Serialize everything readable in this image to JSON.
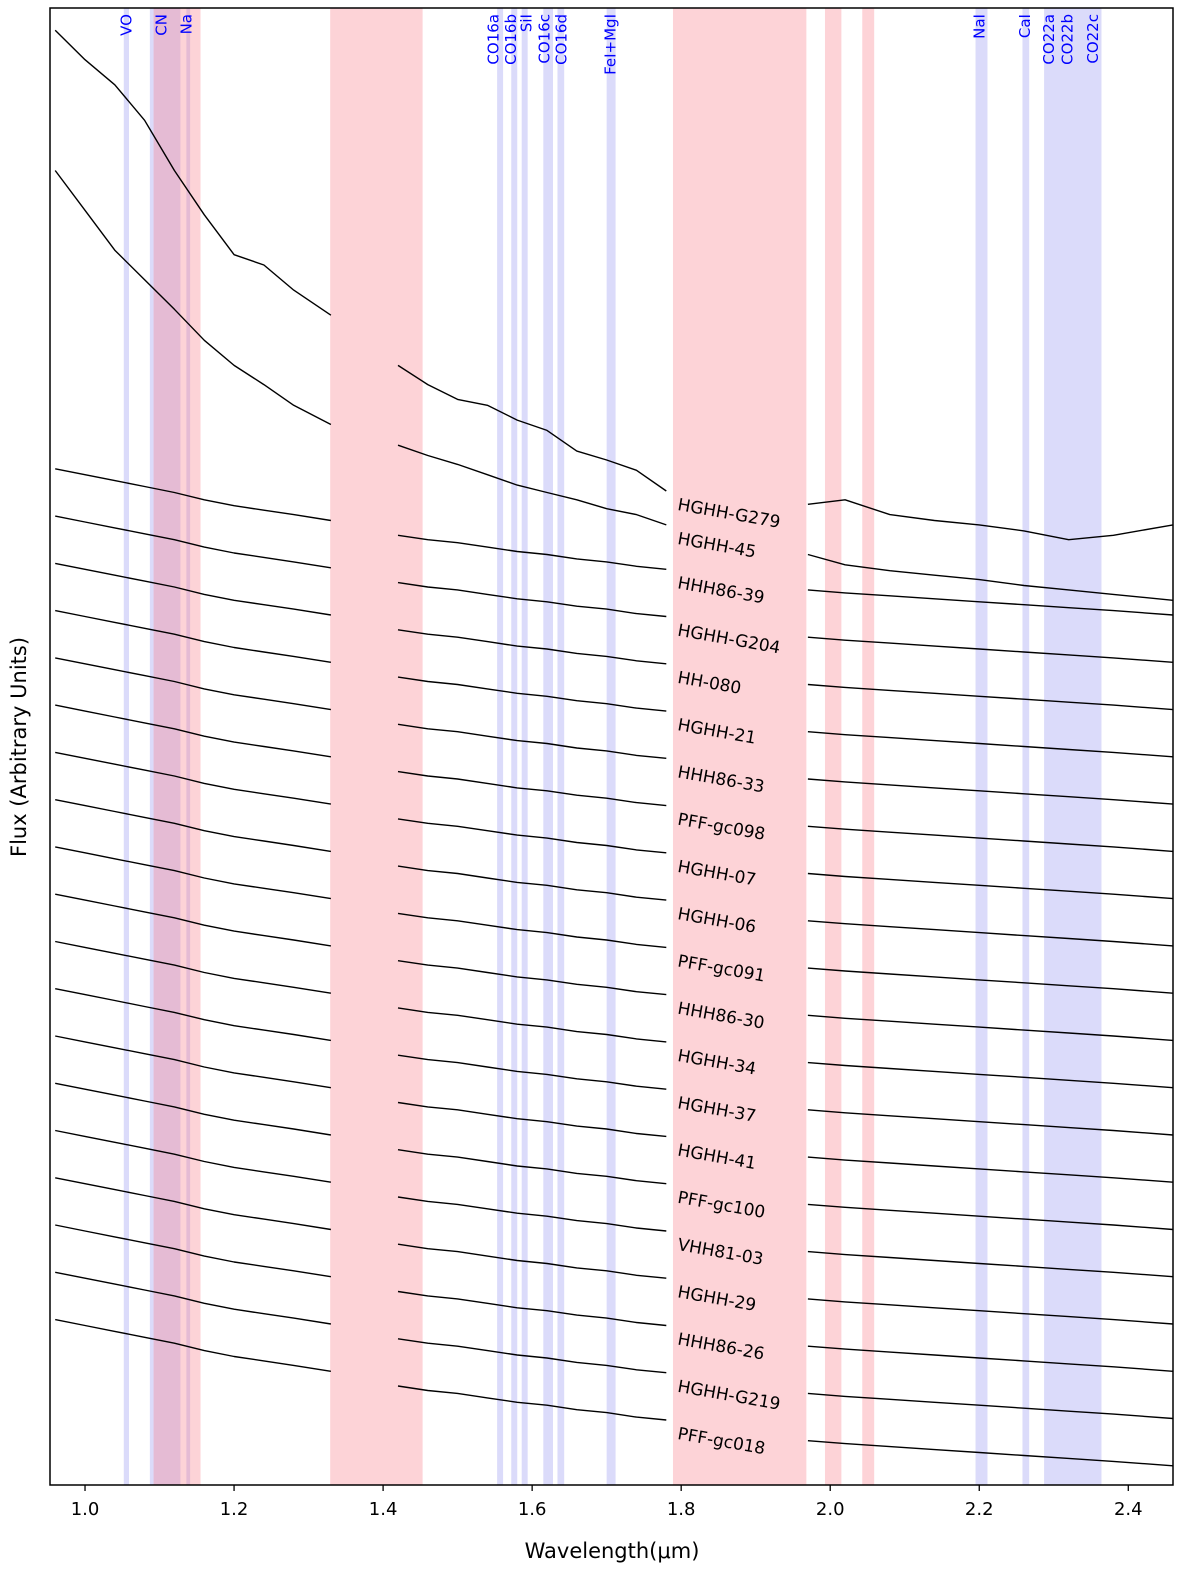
{
  "chart_data": {
    "type": "line",
    "x_label": "Wavelength(μm)",
    "y_label": "Flux (Arbitrary Units)",
    "xlim": [
      0.953,
      2.46
    ],
    "ylim": [
      0,
      100
    ],
    "xticks": [
      {
        "value": 1,
        "label": "1.0"
      },
      1.2,
      1.4,
      1.6,
      1.8,
      {
        "value": 2,
        "label": "2.0"
      },
      2.2,
      2.4
    ],
    "line_color": "#000000",
    "label_x": 1.79,
    "band_colors": {
      "feature": "rgba(175,175,245,0.45)",
      "masked": "rgba(250,130,140,0.35)"
    },
    "feature_bands": [
      [
        1.052,
        1.059
      ],
      [
        1.087,
        1.128
      ],
      [
        1.136,
        1.141
      ],
      [
        1.553,
        1.561
      ],
      [
        1.572,
        1.58
      ],
      [
        1.586,
        1.594
      ],
      [
        1.615,
        1.628
      ],
      [
        1.634,
        1.643
      ],
      [
        1.7,
        1.712
      ],
      [
        2.195,
        2.211
      ],
      [
        2.258,
        2.267
      ],
      [
        2.287,
        2.364
      ]
    ],
    "masked_bands": [
      [
        1.092,
        1.155
      ],
      [
        1.329,
        1.453
      ],
      [
        1.789,
        1.968
      ],
      [
        1.993,
        2.015
      ],
      [
        2.043,
        2.059
      ]
    ],
    "feature_label_color": "#0000ff",
    "features": [
      {
        "label": "VO",
        "x": 1.056
      },
      {
        "label": "CN",
        "x": 1.103
      },
      {
        "label": "Na",
        "x": 1.137
      },
      {
        "label": "CO16a",
        "x": 1.549
      },
      {
        "label": "CO16b",
        "x": 1.572
      },
      {
        "label": "SiI",
        "x": 1.593
      },
      {
        "label": "CO16c",
        "x": 1.617
      },
      {
        "label": "CO16d",
        "x": 1.64
      },
      {
        "label": "FeI+MgI",
        "x": 1.706
      },
      {
        "label": "NaI",
        "x": 2.201
      },
      {
        "label": "CaI",
        "x": 2.262
      },
      {
        "label": "CO22a",
        "x": 2.294
      },
      {
        "label": "CO22b",
        "x": 2.319
      },
      {
        "label": "CO22c",
        "x": 2.353
      }
    ],
    "x": [
      0.96,
      1.0,
      1.04,
      1.08,
      1.12,
      1.16,
      1.2,
      1.24,
      1.28,
      1.33,
      1.38,
      1.42,
      1.46,
      1.5,
      1.54,
      1.58,
      1.62,
      1.66,
      1.7,
      1.74,
      1.78,
      1.88,
      1.97,
      2.02,
      2.08,
      2.14,
      2.2,
      2.26,
      2.32,
      2.38,
      2.46
    ],
    "series": [
      {
        "name": "HGHH-G279",
        "values": [
          98.5,
          96.5,
          94.8,
          92.4,
          89.0,
          86.0,
          83.3,
          82.6,
          80.9,
          79.2,
          null,
          75.8,
          74.5,
          73.5,
          73.1,
          72.1,
          71.4,
          70.0,
          69.4,
          68.7,
          67.3,
          null,
          66.4,
          66.7,
          65.7,
          65.3,
          65.0,
          64.6,
          64.0,
          64.3,
          65.0
        ]
      },
      {
        "name": "HGHH-45",
        "values": [
          89.0,
          86.3,
          83.6,
          81.6,
          79.6,
          77.5,
          75.8,
          74.5,
          73.1,
          71.8,
          null,
          70.4,
          69.7,
          69.1,
          68.4,
          67.7,
          67.2,
          66.7,
          66.1,
          65.7,
          65.0,
          null,
          63.0,
          62.3,
          61.9,
          61.6,
          61.3,
          60.9,
          60.6,
          60.3,
          59.9
        ]
      },
      {
        "name": "HHH86-39",
        "values": [
          68.8,
          68.4,
          68.0,
          67.6,
          67.2,
          66.7,
          66.3,
          66.0,
          65.7,
          65.3,
          null,
          64.3,
          64.0,
          63.8,
          63.5,
          63.2,
          63.0,
          62.7,
          62.5,
          62.2,
          62.0,
          null,
          60.6,
          60.4,
          60.2,
          60.0,
          59.8,
          59.6,
          59.4,
          59.2,
          58.9
        ]
      },
      {
        "name": "HGHH-G204",
        "values": [
          65.6,
          65.2,
          64.8,
          64.4,
          64.0,
          63.5,
          63.1,
          62.8,
          62.5,
          62.1,
          null,
          61.1,
          60.8,
          60.6,
          60.3,
          60.0,
          59.8,
          59.5,
          59.3,
          59.0,
          58.8,
          null,
          57.4,
          57.2,
          57.0,
          56.8,
          56.6,
          56.4,
          56.2,
          56.0,
          55.7
        ]
      },
      {
        "name": "HH-080",
        "values": [
          62.4,
          62.0,
          61.6,
          61.2,
          60.8,
          60.3,
          59.9,
          59.6,
          59.3,
          58.9,
          null,
          57.9,
          57.6,
          57.4,
          57.1,
          56.8,
          56.6,
          56.3,
          56.1,
          55.8,
          55.6,
          null,
          54.2,
          54.0,
          53.8,
          53.6,
          53.4,
          53.2,
          53.0,
          52.8,
          52.5
        ]
      },
      {
        "name": "HGHH-21",
        "values": [
          59.2,
          58.8,
          58.4,
          58.0,
          57.6,
          57.1,
          56.7,
          56.4,
          56.1,
          55.7,
          null,
          54.7,
          54.4,
          54.2,
          53.9,
          53.6,
          53.4,
          53.1,
          52.9,
          52.6,
          52.4,
          null,
          51.0,
          50.8,
          50.6,
          50.4,
          50.2,
          50.0,
          49.8,
          49.6,
          49.3
        ]
      },
      {
        "name": "HHH86-33",
        "values": [
          56.0,
          55.6,
          55.2,
          54.8,
          54.4,
          53.9,
          53.5,
          53.2,
          52.9,
          52.5,
          null,
          51.5,
          51.2,
          51.0,
          50.7,
          50.4,
          50.2,
          49.9,
          49.7,
          49.4,
          49.2,
          null,
          47.8,
          47.6,
          47.4,
          47.2,
          47.0,
          46.8,
          46.6,
          46.4,
          46.1
        ]
      },
      {
        "name": "PFF-gc098",
        "values": [
          52.8,
          52.4,
          52.0,
          51.6,
          51.2,
          50.7,
          50.3,
          50.0,
          49.7,
          49.3,
          null,
          48.3,
          48.0,
          47.8,
          47.5,
          47.2,
          47.0,
          46.7,
          46.5,
          46.2,
          46.0,
          null,
          44.6,
          44.4,
          44.2,
          44.0,
          43.8,
          43.6,
          43.4,
          43.2,
          42.9
        ]
      },
      {
        "name": "HGHH-07",
        "values": [
          49.6,
          49.2,
          48.8,
          48.4,
          48.0,
          47.5,
          47.1,
          46.8,
          46.5,
          46.1,
          null,
          45.1,
          44.8,
          44.6,
          44.3,
          44.0,
          43.8,
          43.5,
          43.3,
          43.0,
          42.8,
          null,
          41.4,
          41.2,
          41.0,
          40.8,
          40.6,
          40.4,
          40.2,
          40.0,
          39.7
        ]
      },
      {
        "name": "HGHH-06",
        "values": [
          46.4,
          46.0,
          45.6,
          45.2,
          44.8,
          44.3,
          43.9,
          43.6,
          43.3,
          42.9,
          null,
          41.9,
          41.6,
          41.4,
          41.1,
          40.8,
          40.6,
          40.3,
          40.1,
          39.8,
          39.6,
          null,
          38.2,
          38.0,
          37.8,
          37.6,
          37.4,
          37.2,
          37.0,
          36.8,
          36.5
        ]
      },
      {
        "name": "PFF-gc091",
        "values": [
          43.2,
          42.8,
          42.4,
          42.0,
          41.6,
          41.1,
          40.7,
          40.4,
          40.1,
          39.7,
          null,
          38.7,
          38.4,
          38.2,
          37.9,
          37.6,
          37.4,
          37.1,
          36.9,
          36.6,
          36.4,
          null,
          35.0,
          34.8,
          34.6,
          34.4,
          34.2,
          34.0,
          33.8,
          33.6,
          33.3
        ]
      },
      {
        "name": "HHH86-30",
        "values": [
          40.0,
          39.6,
          39.2,
          38.8,
          38.4,
          37.9,
          37.5,
          37.2,
          36.9,
          36.5,
          null,
          35.5,
          35.2,
          35.0,
          34.7,
          34.4,
          34.2,
          33.9,
          33.7,
          33.4,
          33.2,
          null,
          31.8,
          31.6,
          31.4,
          31.2,
          31.0,
          30.8,
          30.6,
          30.4,
          30.1
        ]
      },
      {
        "name": "HGHH-34",
        "values": [
          36.8,
          36.4,
          36.0,
          35.6,
          35.2,
          34.7,
          34.3,
          34.0,
          33.7,
          33.3,
          null,
          32.3,
          32.0,
          31.8,
          31.5,
          31.2,
          31.0,
          30.7,
          30.5,
          30.2,
          30.0,
          null,
          28.6,
          28.4,
          28.2,
          28.0,
          27.8,
          27.6,
          27.4,
          27.2,
          26.9
        ]
      },
      {
        "name": "HGHH-37",
        "values": [
          33.6,
          33.2,
          32.8,
          32.4,
          32.0,
          31.5,
          31.1,
          30.8,
          30.5,
          30.1,
          null,
          29.1,
          28.8,
          28.6,
          28.3,
          28.0,
          27.8,
          27.5,
          27.3,
          27.0,
          26.8,
          null,
          25.4,
          25.2,
          25.0,
          24.8,
          24.6,
          24.4,
          24.2,
          24.0,
          23.7
        ]
      },
      {
        "name": "HGHH-41",
        "values": [
          30.4,
          30.0,
          29.6,
          29.2,
          28.8,
          28.3,
          27.9,
          27.6,
          27.3,
          26.9,
          null,
          25.9,
          25.6,
          25.4,
          25.1,
          24.8,
          24.6,
          24.3,
          24.1,
          23.8,
          23.6,
          null,
          22.2,
          22.0,
          21.8,
          21.6,
          21.4,
          21.2,
          21.0,
          20.8,
          20.5
        ]
      },
      {
        "name": "PFF-gc100",
        "values": [
          27.2,
          26.8,
          26.4,
          26.0,
          25.6,
          25.1,
          24.7,
          24.4,
          24.1,
          23.7,
          null,
          22.7,
          22.4,
          22.2,
          21.9,
          21.6,
          21.4,
          21.1,
          20.9,
          20.6,
          20.4,
          null,
          19.0,
          18.8,
          18.6,
          18.4,
          18.2,
          18.0,
          17.8,
          17.6,
          17.3
        ]
      },
      {
        "name": "VHH81-03",
        "values": [
          24.0,
          23.6,
          23.2,
          22.8,
          22.4,
          21.9,
          21.5,
          21.2,
          20.9,
          20.5,
          null,
          19.5,
          19.2,
          19.0,
          18.7,
          18.4,
          18.2,
          17.9,
          17.7,
          17.4,
          17.2,
          null,
          15.8,
          15.6,
          15.4,
          15.2,
          15.0,
          14.8,
          14.6,
          14.4,
          14.1
        ]
      },
      {
        "name": "HGHH-29",
        "values": [
          20.8,
          20.4,
          20.0,
          19.6,
          19.2,
          18.7,
          18.3,
          18.0,
          17.7,
          17.3,
          null,
          16.3,
          16.0,
          15.8,
          15.5,
          15.2,
          15.0,
          14.7,
          14.5,
          14.2,
          14.0,
          null,
          12.6,
          12.4,
          12.2,
          12.0,
          11.8,
          11.6,
          11.4,
          11.2,
          10.9
        ]
      },
      {
        "name": "HHH86-26",
        "values": [
          17.6,
          17.2,
          16.8,
          16.4,
          16.0,
          15.5,
          15.1,
          14.8,
          14.5,
          14.1,
          null,
          13.1,
          12.8,
          12.6,
          12.3,
          12.0,
          11.8,
          11.5,
          11.3,
          11.0,
          10.8,
          null,
          9.4,
          9.2,
          9.0,
          8.8,
          8.6,
          8.4,
          8.2,
          8.0,
          7.7
        ]
      },
      {
        "name": "HGHH-G219",
        "values": [
          14.4,
          14.0,
          13.6,
          13.2,
          12.8,
          12.3,
          11.9,
          11.6,
          11.3,
          10.9,
          null,
          9.9,
          9.6,
          9.4,
          9.1,
          8.8,
          8.6,
          8.3,
          8.1,
          7.8,
          7.6,
          null,
          6.2,
          6.0,
          5.8,
          5.6,
          5.4,
          5.2,
          5.0,
          4.8,
          4.5
        ]
      },
      {
        "name": "PFF-gc018",
        "values": [
          11.2,
          10.8,
          10.4,
          10.0,
          9.6,
          9.1,
          8.7,
          8.4,
          8.1,
          7.7,
          null,
          6.7,
          6.4,
          6.2,
          5.9,
          5.6,
          5.4,
          5.1,
          4.9,
          4.6,
          4.4,
          null,
          3.0,
          2.8,
          2.6,
          2.4,
          2.2,
          2.0,
          1.8,
          1.6,
          1.3
        ]
      }
    ]
  }
}
